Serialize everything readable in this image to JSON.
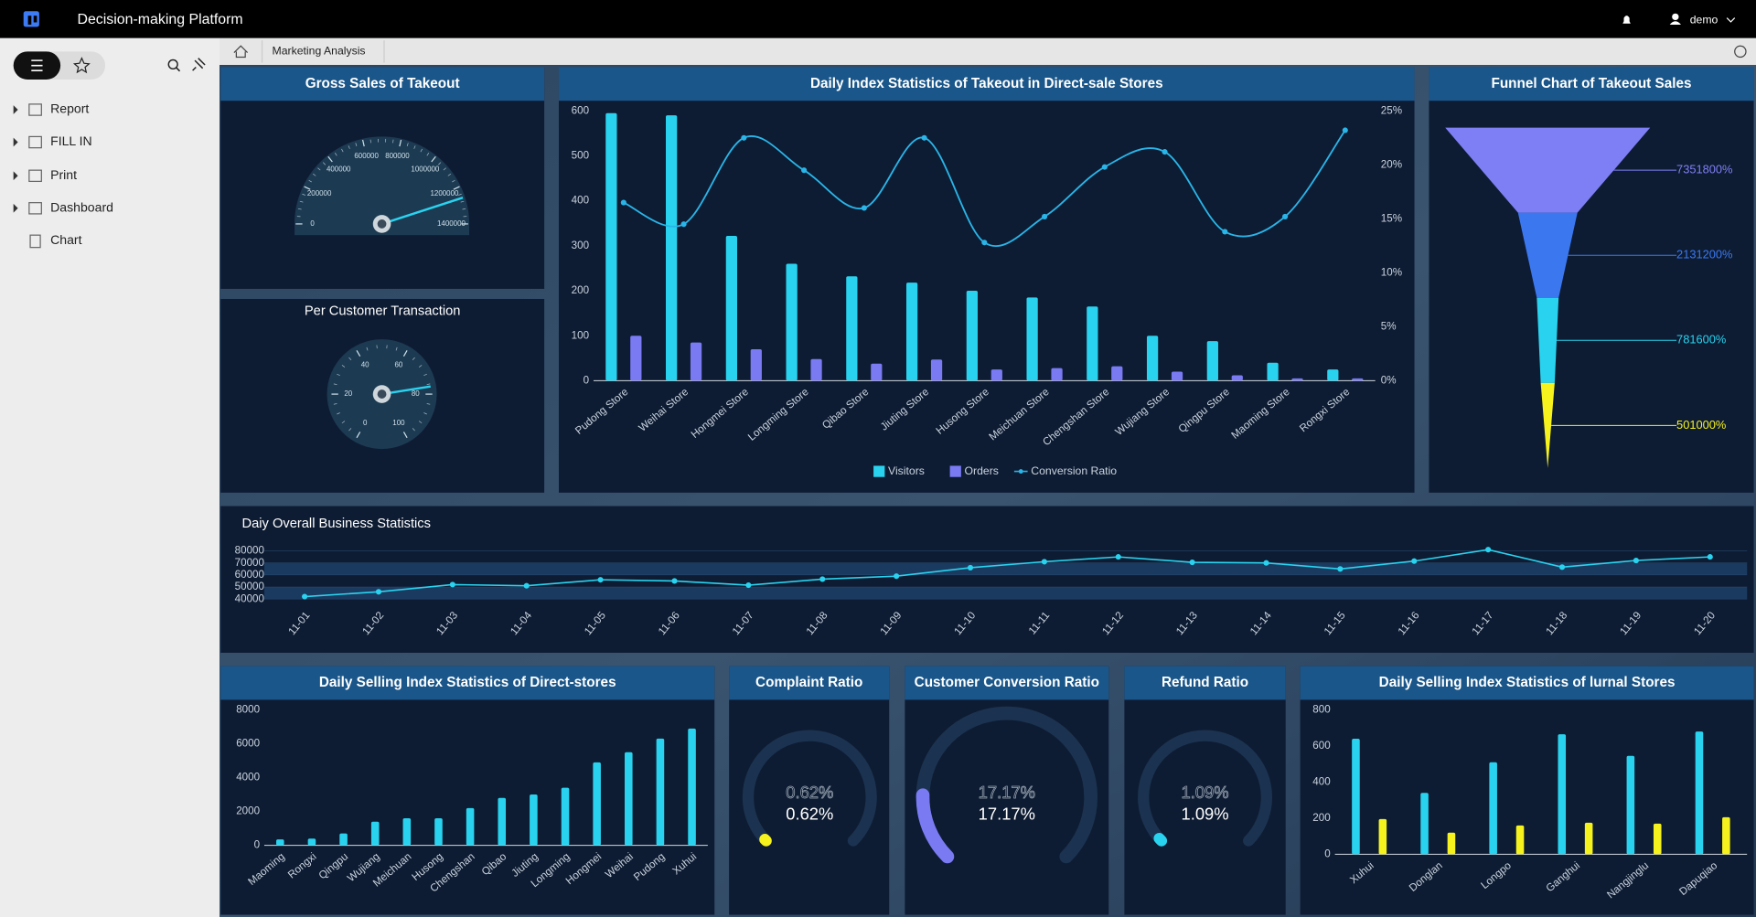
{
  "header": {
    "title": "Decision-making Platform",
    "user": "demo"
  },
  "sidebar": {
    "items": [
      "Report",
      "FILL IN",
      "Print",
      "Dashboard",
      "Chart"
    ]
  },
  "tab": "Marketing Analysis",
  "chart_data": [
    {
      "type": "gauge",
      "title": "Gross Sales of Takeout",
      "value": 1260000,
      "ylim": [
        0,
        1400000
      ],
      "yticks": [
        0,
        200000,
        400000,
        600000,
        800000,
        1000000,
        1200000,
        1400000
      ]
    },
    {
      "type": "gauge",
      "title": "Per Customer Transaction",
      "value": 77,
      "ylim": [
        0,
        100
      ],
      "yticks": [
        0,
        20,
        40,
        60,
        80,
        100
      ]
    },
    {
      "type": "bar",
      "title": "Daily Index Statistics of Takeout in Direct-sale Stores",
      "categories": [
        "Pudong Store",
        "Weihai Store",
        "Hongmei Store",
        "Longming Store",
        "Qibao Store",
        "Jiuting Store",
        "Husong Store",
        "Meichuan Store",
        "Chengshan Store",
        "Wujiang Store",
        "Qingpu Store",
        "Maoming Store",
        "Rongxi Store"
      ],
      "series": [
        {
          "name": "Visitors",
          "type": "bar",
          "color": "#29d3ef",
          "values": [
            595,
            590,
            322,
            260,
            232,
            218,
            200,
            185,
            165,
            100,
            88,
            40,
            25
          ]
        },
        {
          "name": "Orders",
          "type": "bar",
          "color": "#7a7af3",
          "values": [
            100,
            85,
            70,
            48,
            38,
            47,
            25,
            28,
            32,
            20,
            12,
            5,
            5
          ]
        },
        {
          "name": "Conversion Ratio",
          "type": "line",
          "axis": "y2",
          "color": "#29b5e8",
          "values": [
            16.5,
            14.5,
            22.5,
            19.5,
            16,
            22.5,
            12.8,
            15.2,
            19.8,
            21.2,
            13.8,
            15.2,
            23.2
          ]
        }
      ],
      "ylim": [
        0,
        600
      ],
      "yticks": [
        0,
        100,
        200,
        300,
        400,
        500,
        600
      ],
      "y2lim": [
        0,
        25
      ],
      "y2ticks": [
        {
          "value": 0,
          "label": "0%"
        },
        {
          "value": 5,
          "label": "5%"
        },
        {
          "value": 10,
          "label": "10%"
        },
        {
          "value": 15,
          "label": "15%"
        },
        {
          "value": 20,
          "label": "20%"
        },
        {
          "value": 25,
          "label": "25%"
        }
      ]
    },
    {
      "type": "funnel",
      "title": "Funnel Chart of Takeout Sales",
      "values": [
        7351800,
        2131200,
        781600,
        501000
      ],
      "value_labels": [
        "7351800%",
        "2131200%",
        "781600%",
        "501000%"
      ],
      "colors": [
        "#7f7ff5",
        "#3b78f0",
        "#29d3ef",
        "#f5f21d"
      ]
    },
    {
      "type": "line",
      "title": "Daiy Overall Business Statistics",
      "categories": [
        "11-01",
        "11-02",
        "11-03",
        "11-04",
        "11-05",
        "11-06",
        "11-07",
        "11-08",
        "11-09",
        "11-10",
        "11-11",
        "11-12",
        "11-13",
        "11-14",
        "11-15",
        "11-16",
        "11-17",
        "11-18",
        "11-19",
        "11-20"
      ],
      "values": [
        42000,
        46000,
        52000,
        51000,
        56000,
        55000,
        51500,
        56500,
        59000,
        66000,
        71000,
        75000,
        70500,
        70000,
        65000,
        71500,
        81000,
        66500,
        72000,
        75000
      ],
      "color": "#29d3ef",
      "ylim": [
        40000,
        80000
      ],
      "yticks": [
        40000,
        50000,
        60000,
        70000,
        80000
      ]
    },
    {
      "type": "bar",
      "title": "Daily Selling Index Statistics of Direct-stores",
      "categories": [
        "Maoming",
        "Rongxi",
        "Qingpu",
        "Wujiang",
        "Meichuan",
        "Husong",
        "Chengshan",
        "Qibao",
        "Jiuting",
        "Longming",
        "Hongmei",
        "Weihai",
        "Pudong",
        "Xuhui"
      ],
      "values": [
        350,
        400,
        700,
        1400,
        1600,
        1600,
        2200,
        2800,
        3000,
        3400,
        4900,
        5500,
        6300,
        6900
      ],
      "color": "#29d3ef",
      "ylim": [
        0,
        8000
      ],
      "yticks": [
        0,
        2000,
        4000,
        6000,
        8000
      ]
    },
    {
      "type": "progress",
      "title": "Complaint Ratio",
      "value": 0.62,
      "value_label": "0.62%",
      "ylim": [
        0,
        100
      ],
      "color": "#f5f21d"
    },
    {
      "type": "progress",
      "title": "Customer Conversion Ratio",
      "value": 17.17,
      "value_label": "17.17%",
      "ylim": [
        0,
        100
      ],
      "color": "#7a7af3"
    },
    {
      "type": "progress",
      "title": "Refund Ratio",
      "value": 1.09,
      "value_label": "1.09%",
      "ylim": [
        0,
        100
      ],
      "color": "#29d3ef"
    },
    {
      "type": "bar",
      "title": "Daily Selling Index Statistics of lurnal Stores",
      "categories": [
        "Xuhui",
        "Donglan",
        "Longpo",
        "Ganghui",
        "Nangjinglu",
        "Dapuqiao"
      ],
      "series": [
        {
          "color": "#29d3ef",
          "values": [
            640,
            340,
            510,
            665,
            545,
            680
          ]
        },
        {
          "color": "#f5f21d",
          "values": [
            195,
            120,
            160,
            175,
            170,
            205
          ]
        }
      ],
      "ylim": [
        0,
        800
      ],
      "yticks": [
        0,
        200,
        400,
        600,
        800
      ]
    }
  ]
}
